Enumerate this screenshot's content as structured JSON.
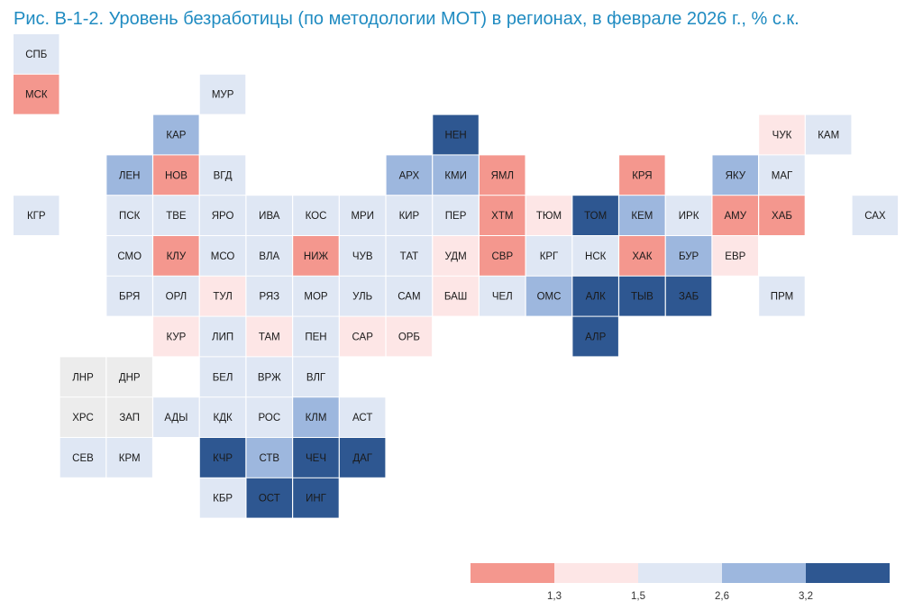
{
  "chart_data": {
    "type": "heatmap",
    "subtype": "tile-grid-map",
    "title": "Рис. В-1-2. Уровень безработицы (по методологии МОТ) в регионах, в феврале 2026 г., % с.к.",
    "colors": {
      "nodata": "#ececec",
      "bins": [
        "#f4978e",
        "#fde6e6",
        "#dfe7f4",
        "#9db7de",
        "#2e5791"
      ]
    },
    "legend": {
      "colors": [
        "#f4978e",
        "#fde6e6",
        "#dfe7f4",
        "#9db7de",
        "#2e5791"
      ],
      "ticks": [
        "1,3",
        "1,5",
        "2,6",
        "3,2"
      ],
      "placement": "bottom-right"
    },
    "regions": [
      {
        "code": "СПБ",
        "row": 0,
        "col": 0,
        "bin": 2
      },
      {
        "code": "МСК",
        "row": 1,
        "col": 0,
        "bin": 0
      },
      {
        "code": "МУР",
        "row": 1,
        "col": 4,
        "bin": 2
      },
      {
        "code": "КАР",
        "row": 2,
        "col": 3,
        "bin": 3
      },
      {
        "code": "НЕН",
        "row": 2,
        "col": 9,
        "bin": 4
      },
      {
        "code": "ЧУК",
        "row": 2,
        "col": 16,
        "bin": 1
      },
      {
        "code": "КАМ",
        "row": 2,
        "col": 17,
        "bin": 2
      },
      {
        "code": "ЛЕН",
        "row": 3,
        "col": 2,
        "bin": 3
      },
      {
        "code": "НОВ",
        "row": 3,
        "col": 3,
        "bin": 0
      },
      {
        "code": "ВГД",
        "row": 3,
        "col": 4,
        "bin": 2
      },
      {
        "code": "АРХ",
        "row": 3,
        "col": 8,
        "bin": 3
      },
      {
        "code": "КМИ",
        "row": 3,
        "col": 9,
        "bin": 3
      },
      {
        "code": "ЯМЛ",
        "row": 3,
        "col": 10,
        "bin": 0
      },
      {
        "code": "КРЯ",
        "row": 3,
        "col": 13,
        "bin": 0
      },
      {
        "code": "ЯКУ",
        "row": 3,
        "col": 15,
        "bin": 3
      },
      {
        "code": "МАГ",
        "row": 3,
        "col": 16,
        "bin": 2
      },
      {
        "code": "КГР",
        "row": 4,
        "col": 0,
        "bin": 2
      },
      {
        "code": "ПСК",
        "row": 4,
        "col": 2,
        "bin": 2
      },
      {
        "code": "ТВЕ",
        "row": 4,
        "col": 3,
        "bin": 2
      },
      {
        "code": "ЯРО",
        "row": 4,
        "col": 4,
        "bin": 2
      },
      {
        "code": "ИВА",
        "row": 4,
        "col": 5,
        "bin": 2
      },
      {
        "code": "КОС",
        "row": 4,
        "col": 6,
        "bin": 2
      },
      {
        "code": "МРИ",
        "row": 4,
        "col": 7,
        "bin": 2
      },
      {
        "code": "КИР",
        "row": 4,
        "col": 8,
        "bin": 2
      },
      {
        "code": "ПЕР",
        "row": 4,
        "col": 9,
        "bin": 2
      },
      {
        "code": "ХТМ",
        "row": 4,
        "col": 10,
        "bin": 0
      },
      {
        "code": "ТЮМ",
        "row": 4,
        "col": 11,
        "bin": 1
      },
      {
        "code": "ТОМ",
        "row": 4,
        "col": 12,
        "bin": 4
      },
      {
        "code": "КЕМ",
        "row": 4,
        "col": 13,
        "bin": 3
      },
      {
        "code": "ИРК",
        "row": 4,
        "col": 14,
        "bin": 2
      },
      {
        "code": "АМУ",
        "row": 4,
        "col": 15,
        "bin": 0
      },
      {
        "code": "ХАБ",
        "row": 4,
        "col": 16,
        "bin": 0
      },
      {
        "code": "САХ",
        "row": 4,
        "col": 18,
        "bin": 2
      },
      {
        "code": "СМО",
        "row": 5,
        "col": 2,
        "bin": 2
      },
      {
        "code": "КЛУ",
        "row": 5,
        "col": 3,
        "bin": 0
      },
      {
        "code": "МСО",
        "row": 5,
        "col": 4,
        "bin": 2
      },
      {
        "code": "ВЛА",
        "row": 5,
        "col": 5,
        "bin": 2
      },
      {
        "code": "НИЖ",
        "row": 5,
        "col": 6,
        "bin": 0
      },
      {
        "code": "ЧУВ",
        "row": 5,
        "col": 7,
        "bin": 2
      },
      {
        "code": "ТАТ",
        "row": 5,
        "col": 8,
        "bin": 2
      },
      {
        "code": "УДМ",
        "row": 5,
        "col": 9,
        "bin": 1
      },
      {
        "code": "СВР",
        "row": 5,
        "col": 10,
        "bin": 0
      },
      {
        "code": "КРГ",
        "row": 5,
        "col": 11,
        "bin": 2
      },
      {
        "code": "НСК",
        "row": 5,
        "col": 12,
        "bin": 2
      },
      {
        "code": "ХАК",
        "row": 5,
        "col": 13,
        "bin": 0
      },
      {
        "code": "БУР",
        "row": 5,
        "col": 14,
        "bin": 3
      },
      {
        "code": "ЕВР",
        "row": 5,
        "col": 15,
        "bin": 1
      },
      {
        "code": "БРЯ",
        "row": 6,
        "col": 2,
        "bin": 2
      },
      {
        "code": "ОРЛ",
        "row": 6,
        "col": 3,
        "bin": 2
      },
      {
        "code": "ТУЛ",
        "row": 6,
        "col": 4,
        "bin": 1
      },
      {
        "code": "РЯЗ",
        "row": 6,
        "col": 5,
        "bin": 2
      },
      {
        "code": "МОР",
        "row": 6,
        "col": 6,
        "bin": 2
      },
      {
        "code": "УЛЬ",
        "row": 6,
        "col": 7,
        "bin": 2
      },
      {
        "code": "САМ",
        "row": 6,
        "col": 8,
        "bin": 2
      },
      {
        "code": "БАШ",
        "row": 6,
        "col": 9,
        "bin": 1
      },
      {
        "code": "ЧЕЛ",
        "row": 6,
        "col": 10,
        "bin": 2
      },
      {
        "code": "ОМС",
        "row": 6,
        "col": 11,
        "bin": 3
      },
      {
        "code": "АЛК",
        "row": 6,
        "col": 12,
        "bin": 4
      },
      {
        "code": "ТЫВ",
        "row": 6,
        "col": 13,
        "bin": 4
      },
      {
        "code": "ЗАБ",
        "row": 6,
        "col": 14,
        "bin": 4
      },
      {
        "code": "ПРМ",
        "row": 6,
        "col": 16,
        "bin": 2
      },
      {
        "code": "КУР",
        "row": 7,
        "col": 3,
        "bin": 1
      },
      {
        "code": "ЛИП",
        "row": 7,
        "col": 4,
        "bin": 2
      },
      {
        "code": "ТАМ",
        "row": 7,
        "col": 5,
        "bin": 1
      },
      {
        "code": "ПЕН",
        "row": 7,
        "col": 6,
        "bin": 2
      },
      {
        "code": "САР",
        "row": 7,
        "col": 7,
        "bin": 1
      },
      {
        "code": "ОРБ",
        "row": 7,
        "col": 8,
        "bin": 1
      },
      {
        "code": "АЛР",
        "row": 7,
        "col": 12,
        "bin": 4
      },
      {
        "code": "ЛНР",
        "row": 8,
        "col": 1,
        "bin": -1
      },
      {
        "code": "ДНР",
        "row": 8,
        "col": 2,
        "bin": -1
      },
      {
        "code": "БЕЛ",
        "row": 8,
        "col": 4,
        "bin": 2
      },
      {
        "code": "ВРЖ",
        "row": 8,
        "col": 5,
        "bin": 2
      },
      {
        "code": "ВЛГ",
        "row": 8,
        "col": 6,
        "bin": 2
      },
      {
        "code": "ХРС",
        "row": 9,
        "col": 1,
        "bin": -1
      },
      {
        "code": "ЗАП",
        "row": 9,
        "col": 2,
        "bin": -1
      },
      {
        "code": "АДЫ",
        "row": 9,
        "col": 3,
        "bin": 2
      },
      {
        "code": "КДК",
        "row": 9,
        "col": 4,
        "bin": 2
      },
      {
        "code": "РОС",
        "row": 9,
        "col": 5,
        "bin": 2
      },
      {
        "code": "КЛМ",
        "row": 9,
        "col": 6,
        "bin": 3
      },
      {
        "code": "АСТ",
        "row": 9,
        "col": 7,
        "bin": 2
      },
      {
        "code": "СЕВ",
        "row": 10,
        "col": 1,
        "bin": 2
      },
      {
        "code": "КРМ",
        "row": 10,
        "col": 2,
        "bin": 2
      },
      {
        "code": "КЧР",
        "row": 10,
        "col": 4,
        "bin": 4
      },
      {
        "code": "СТВ",
        "row": 10,
        "col": 5,
        "bin": 3
      },
      {
        "code": "ЧЕЧ",
        "row": 10,
        "col": 6,
        "bin": 4
      },
      {
        "code": "ДАГ",
        "row": 10,
        "col": 7,
        "bin": 4
      },
      {
        "code": "КБР",
        "row": 11,
        "col": 4,
        "bin": 2
      },
      {
        "code": "ОСТ",
        "row": 11,
        "col": 5,
        "bin": 4
      },
      {
        "code": "ИНГ",
        "row": 11,
        "col": 6,
        "bin": 4
      }
    ]
  }
}
